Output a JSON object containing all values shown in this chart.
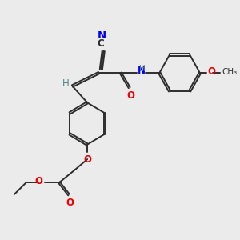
{
  "background_color": "#ebebeb",
  "bond_color": "#2d2d2d",
  "atom_colors": {
    "N": "#0000ee",
    "O": "#ee0000",
    "H": "#4d8888",
    "C": "#2d2d2d"
  },
  "figsize": [
    3.0,
    3.0
  ],
  "dpi": 100
}
